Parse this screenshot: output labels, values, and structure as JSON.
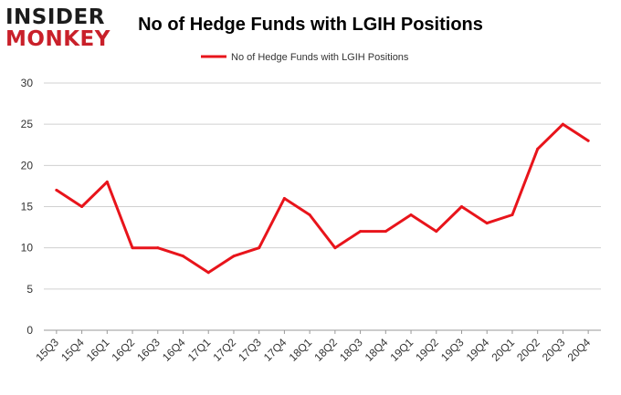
{
  "logo": {
    "line1": "INSIDER",
    "line2": "MONKEY"
  },
  "chart_data": {
    "type": "line",
    "title": "No of Hedge Funds with LGIH Positions",
    "xlabel": "",
    "ylabel": "",
    "ylim": [
      0,
      30
    ],
    "yticks": [
      0,
      5,
      10,
      15,
      20,
      25,
      30
    ],
    "grid": true,
    "legend_position": "top-center",
    "colors": {
      "line": "#e8141b",
      "grid": "#d0d0d0",
      "axis": "#999999"
    },
    "categories": [
      "15Q3",
      "15Q4",
      "16Q1",
      "16Q2",
      "16Q3",
      "16Q4",
      "17Q1",
      "17Q2",
      "17Q3",
      "17Q4",
      "18Q1",
      "18Q2",
      "18Q3",
      "18Q4",
      "19Q1",
      "19Q2",
      "19Q3",
      "19Q4",
      "20Q1",
      "20Q2",
      "20Q3",
      "20Q4"
    ],
    "series": [
      {
        "name": "No of Hedge Funds with LGIH Positions",
        "values": [
          17,
          15,
          18,
          10,
          10,
          9,
          7,
          9,
          10,
          16,
          14,
          10,
          12,
          12,
          14,
          12,
          15,
          13,
          14,
          22,
          25,
          23
        ]
      }
    ]
  }
}
